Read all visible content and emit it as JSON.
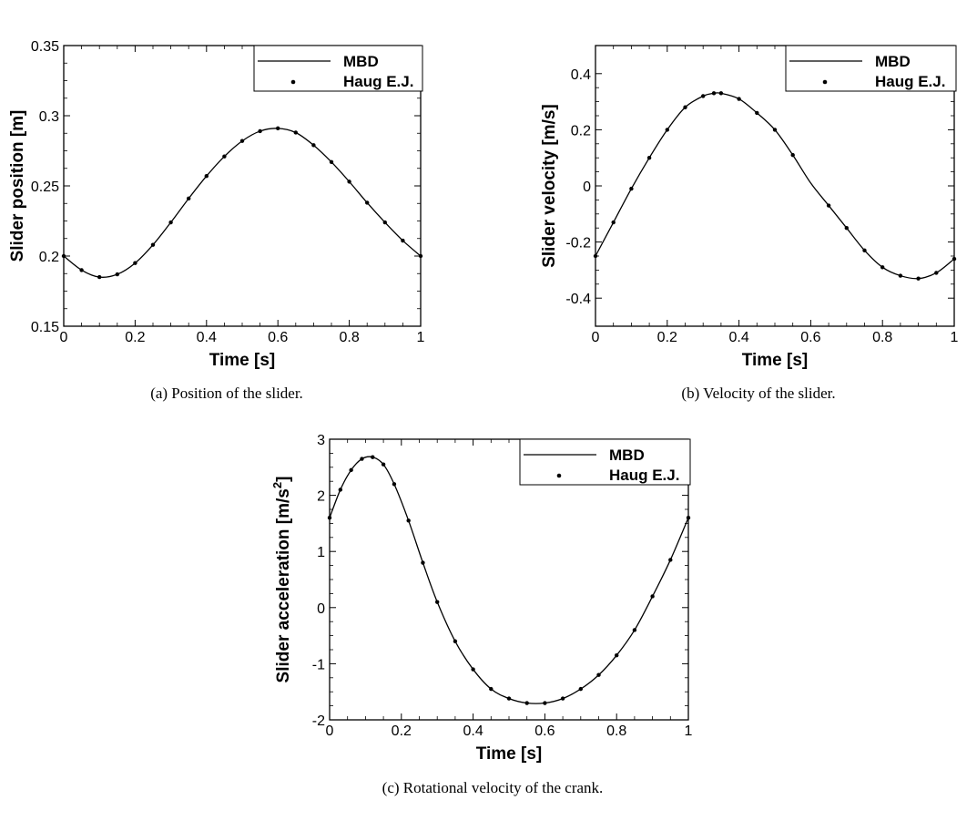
{
  "chart_data": [
    {
      "type": "line",
      "caption": "(a)  Position of the slider.",
      "xlabel": "Time [s]",
      "ylabel": "Slider position [m]",
      "xlim": [
        0,
        1
      ],
      "ylim": [
        0.15,
        0.35
      ],
      "xticks": [
        "0",
        "0.2",
        "0.4",
        "0.6",
        "0.8",
        "1"
      ],
      "yticks": [
        "0.15",
        "0.2",
        "0.25",
        "0.3",
        "0.35"
      ],
      "grid": false,
      "legend_position": "top-right",
      "series": [
        {
          "name": "MBD",
          "style": "line",
          "x": [
            0,
            0.05,
            0.1,
            0.15,
            0.2,
            0.25,
            0.3,
            0.35,
            0.4,
            0.45,
            0.5,
            0.55,
            0.6,
            0.65,
            0.7,
            0.75,
            0.8,
            0.85,
            0.9,
            0.95,
            1
          ],
          "y": [
            0.2,
            0.19,
            0.185,
            0.187,
            0.195,
            0.208,
            0.224,
            0.241,
            0.257,
            0.271,
            0.282,
            0.289,
            0.291,
            0.288,
            0.279,
            0.267,
            0.253,
            0.238,
            0.224,
            0.211,
            0.2
          ]
        },
        {
          "name": "Haug E.J.",
          "style": "markers",
          "x": [
            0,
            0.05,
            0.1,
            0.15,
            0.2,
            0.25,
            0.3,
            0.35,
            0.4,
            0.45,
            0.5,
            0.55,
            0.6,
            0.65,
            0.7,
            0.75,
            0.8,
            0.85,
            0.9,
            0.95,
            1
          ],
          "y": [
            0.2,
            0.19,
            0.185,
            0.187,
            0.195,
            0.208,
            0.224,
            0.241,
            0.257,
            0.271,
            0.282,
            0.289,
            0.291,
            0.288,
            0.279,
            0.267,
            0.253,
            0.238,
            0.224,
            0.211,
            0.2
          ]
        }
      ]
    },
    {
      "type": "line",
      "caption": "(b)  Velocity of the slider.",
      "xlabel": "Time [s]",
      "ylabel": "Slider velocity [m/s]",
      "xlim": [
        0,
        1
      ],
      "ylim": [
        -0.5,
        0.5
      ],
      "xticks": [
        "0",
        "0.2",
        "0.4",
        "0.6",
        "0.8",
        "1"
      ],
      "yticks": [
        "-0.4",
        "-0.2",
        "0",
        "0.2",
        "0.4"
      ],
      "grid": false,
      "legend_position": "top-right",
      "series": [
        {
          "name": "MBD",
          "style": "line",
          "x": [
            0,
            0.05,
            0.1,
            0.15,
            0.2,
            0.25,
            0.3,
            0.33,
            0.35,
            0.4,
            0.45,
            0.5,
            0.55,
            0.6,
            0.65,
            0.7,
            0.75,
            0.8,
            0.85,
            0.9,
            0.95,
            1
          ],
          "y": [
            -0.25,
            -0.13,
            -0.01,
            0.1,
            0.2,
            0.28,
            0.32,
            0.33,
            0.33,
            0.31,
            0.26,
            0.2,
            0.11,
            0.01,
            -0.07,
            -0.15,
            -0.23,
            -0.29,
            -0.32,
            -0.33,
            -0.31,
            -0.26
          ]
        },
        {
          "name": "Haug E.J.",
          "style": "markers",
          "x": [
            0,
            0.05,
            0.1,
            0.15,
            0.2,
            0.25,
            0.3,
            0.33,
            0.35,
            0.4,
            0.45,
            0.5,
            0.55,
            0.65,
            0.7,
            0.75,
            0.8,
            0.85,
            0.9,
            0.95,
            1
          ],
          "y": [
            -0.25,
            -0.13,
            -0.01,
            0.1,
            0.2,
            0.28,
            0.32,
            0.33,
            0.33,
            0.31,
            0.26,
            0.2,
            0.11,
            -0.07,
            -0.15,
            -0.23,
            -0.29,
            -0.32,
            -0.33,
            -0.31,
            -0.26
          ]
        }
      ]
    },
    {
      "type": "line",
      "caption": "(c)  Rotational velocity of the crank.",
      "xlabel": "Time [s]",
      "ylabel": "Slider acceleration [m/s",
      "ylabel_sup": "2",
      "ylabel_end": "]",
      "xlim": [
        0,
        1
      ],
      "ylim": [
        -2,
        3
      ],
      "xticks": [
        "0",
        "0.2",
        "0.4",
        "0.6",
        "0.8",
        "1"
      ],
      "yticks": [
        "-2",
        "-1",
        "0",
        "1",
        "2",
        "3"
      ],
      "grid": false,
      "legend_position": "top-right",
      "series": [
        {
          "name": "MBD",
          "style": "line",
          "x": [
            0,
            0.03,
            0.06,
            0.09,
            0.12,
            0.15,
            0.18,
            0.22,
            0.26,
            0.3,
            0.35,
            0.4,
            0.45,
            0.5,
            0.55,
            0.6,
            0.65,
            0.7,
            0.75,
            0.8,
            0.85,
            0.9,
            0.95,
            1
          ],
          "y": [
            1.6,
            2.1,
            2.45,
            2.65,
            2.68,
            2.55,
            2.2,
            1.55,
            0.8,
            0.1,
            -0.6,
            -1.1,
            -1.45,
            -1.62,
            -1.7,
            -1.7,
            -1.62,
            -1.45,
            -1.2,
            -0.85,
            -0.4,
            0.2,
            0.85,
            1.6
          ]
        },
        {
          "name": "Haug E.J.",
          "style": "markers",
          "x": [
            0,
            0.03,
            0.06,
            0.09,
            0.12,
            0.15,
            0.18,
            0.22,
            0.26,
            0.3,
            0.35,
            0.4,
            0.45,
            0.5,
            0.55,
            0.6,
            0.65,
            0.7,
            0.75,
            0.8,
            0.85,
            0.9,
            0.95,
            1
          ],
          "y": [
            1.6,
            2.1,
            2.45,
            2.65,
            2.68,
            2.55,
            2.2,
            1.55,
            0.8,
            0.1,
            -0.6,
            -1.1,
            -1.45,
            -1.62,
            -1.7,
            -1.7,
            -1.62,
            -1.45,
            -1.2,
            -0.85,
            -0.4,
            0.2,
            0.85,
            1.6
          ]
        }
      ]
    }
  ]
}
